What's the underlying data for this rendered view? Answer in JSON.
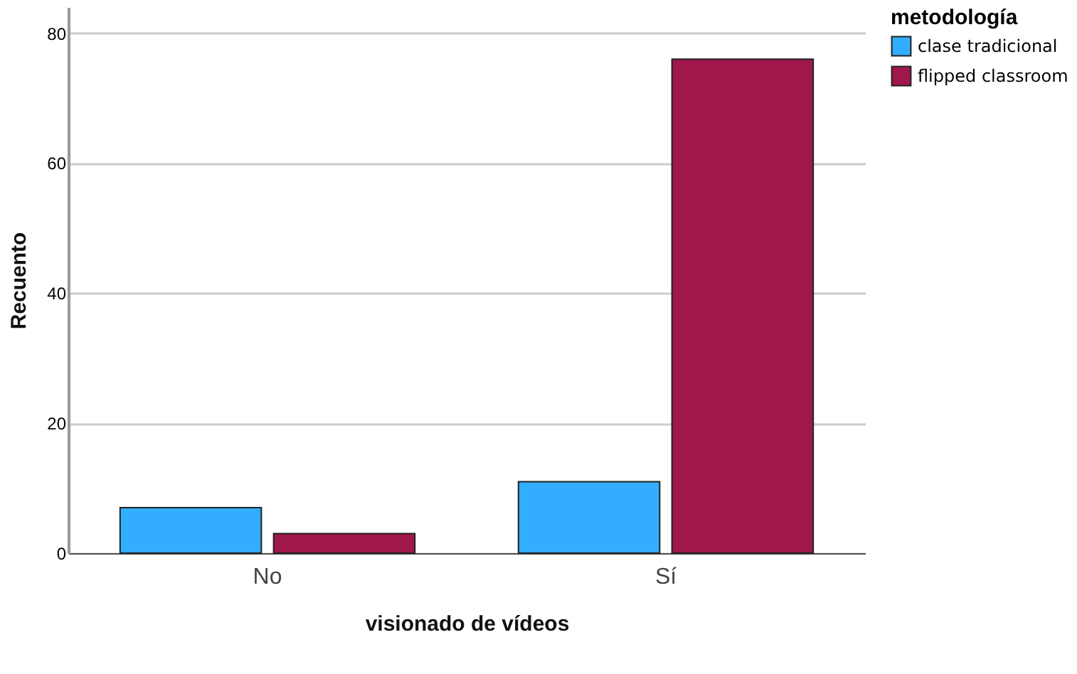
{
  "chart_data": {
    "type": "bar",
    "xlabel": "visionado de vídeos",
    "ylabel": "Recuento",
    "legend_title": "metodología",
    "categories": [
      "No",
      "Sí"
    ],
    "series": [
      {
        "name": "clase tradicional",
        "color": "#33adff",
        "values": [
          7,
          11
        ]
      },
      {
        "name": "flipped classroom",
        "color": "#a0174b",
        "values": [
          3,
          76
        ]
      }
    ],
    "ylim": [
      0,
      84
    ],
    "yticks": [
      0,
      20,
      40,
      60,
      80
    ],
    "grid": "y",
    "legend": "top right"
  }
}
